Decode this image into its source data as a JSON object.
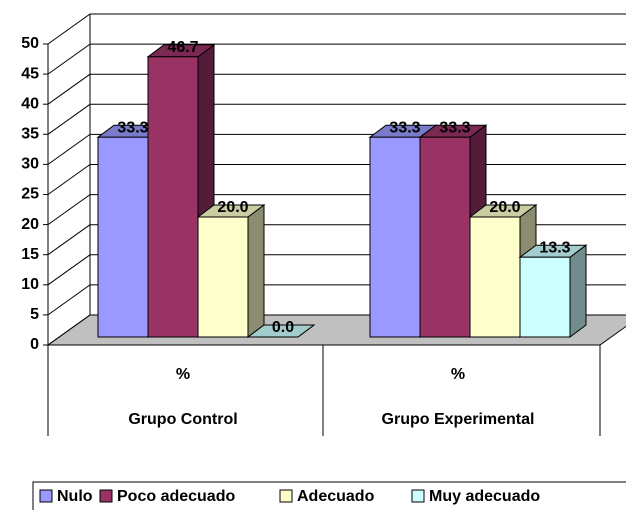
{
  "chart_data": {
    "type": "bar3d",
    "categories": [
      "Grupo Control",
      "Grupo Experimental"
    ],
    "x_sublabels": [
      "%",
      "%"
    ],
    "series": [
      {
        "name": "Nulo",
        "color": "#9999ff",
        "values": [
          33.3,
          33.3
        ],
        "value_labels": [
          "33.3",
          "33.3"
        ]
      },
      {
        "name": "Poco adecuado",
        "color": "#993366",
        "values": [
          46.7,
          33.3
        ],
        "value_labels": [
          "46.7",
          "33.3"
        ]
      },
      {
        "name": "Adecuado",
        "color": "#ffffcc",
        "values": [
          20.0,
          20.0
        ],
        "value_labels": [
          "20.0",
          "20.0"
        ]
      },
      {
        "name": "Muy adecuado",
        "color": "#ccffff",
        "values": [
          0.0,
          13.3
        ],
        "value_labels": [
          "0.0",
          "13.3"
        ]
      }
    ],
    "ylim": [
      0,
      50
    ],
    "yticks": [
      0,
      5,
      10,
      15,
      20,
      25,
      30,
      35,
      40,
      45,
      50
    ],
    "grid": true
  }
}
